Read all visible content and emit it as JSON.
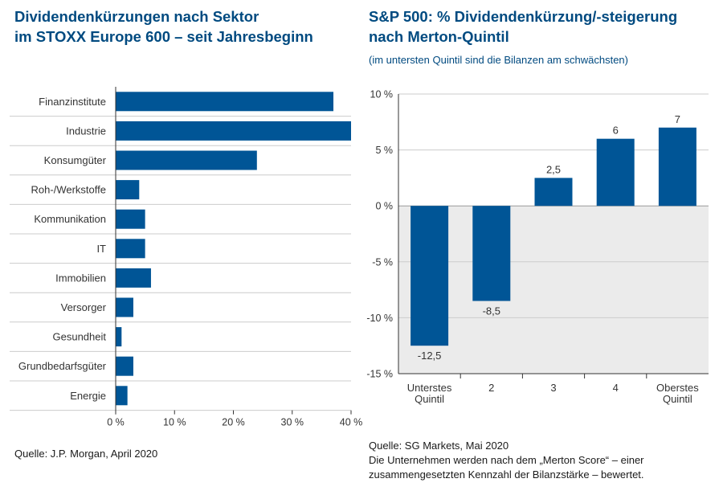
{
  "colors": {
    "bar": "#005596",
    "title": "#004a80",
    "grid": "#cccccc",
    "negative_bg": "#ebebeb"
  },
  "left_chart": {
    "title_line1": "Dividendenkürzungen nach Sektor",
    "title_line2": "im STOXX Europe 600 – seit Jahresbeginn",
    "source": "Quelle: J.P. Morgan, April 2020"
  },
  "right_chart": {
    "title_line1": "S&P 500: % Dividendenkürzung/-steigerung",
    "title_line2": "nach Merton-Quintil",
    "subtitle": "(im untersten Quintil sind die Bilanzen am schwächsten)",
    "source": "Quelle: SG Markets, Mai 2020",
    "note": "Die Unternehmen werden nach dem „Merton Score“ – einer zusammengesetzten Kennzahl der  Bilanzstärke – bewertet."
  },
  "chart_data": [
    {
      "type": "bar",
      "orientation": "horizontal",
      "title": "Dividendenkürzungen nach Sektor im STOXX Europe 600 – seit Jahresbeginn",
      "categories": [
        "Finanzinstitute",
        "Industrie",
        "Konsumgüter",
        "Roh-/Werkstoffe",
        "Kommunikation",
        "IT",
        "Immobilien",
        "Versorger",
        "Gesundheit",
        "Grundbedarfsgüter",
        "Energie"
      ],
      "values": [
        37,
        40,
        24,
        4,
        5,
        5,
        6,
        3,
        1,
        3,
        2
      ],
      "xlim": [
        0,
        40
      ],
      "xticks": [
        0,
        10,
        20,
        30,
        40
      ],
      "xtick_labels": [
        "0 %",
        "10 %",
        "20 %",
        "30 %",
        "40 %"
      ],
      "unit": "%"
    },
    {
      "type": "bar",
      "orientation": "vertical",
      "title": "S&P 500: % Dividendenkürzung/-steigerung nach Merton-Quintil",
      "categories": [
        [
          "Unterstes",
          "Quintil"
        ],
        [
          "2"
        ],
        [
          "3"
        ],
        [
          "4"
        ],
        [
          "Oberstes",
          "Quintil"
        ]
      ],
      "values": [
        -12.5,
        -8.5,
        2.5,
        6,
        7
      ],
      "data_labels": [
        "-12,5",
        "-8,5",
        "2,5",
        "6",
        "7"
      ],
      "ylim": [
        -15,
        10
      ],
      "yticks": [
        10,
        5,
        0,
        -5,
        -10,
        -15
      ],
      "ytick_labels": [
        "10 %",
        "5 %",
        "0 %",
        "-5 %",
        "-10 %",
        "-15 %"
      ],
      "unit": "%"
    }
  ]
}
